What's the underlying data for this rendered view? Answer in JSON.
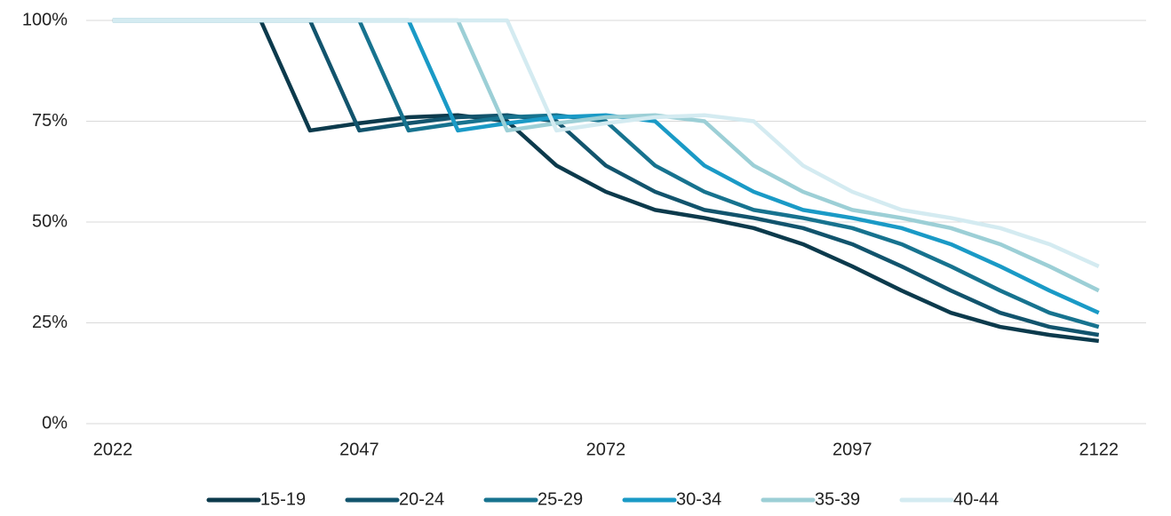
{
  "chart_data": {
    "type": "line",
    "x": [
      2022,
      2027,
      2032,
      2037,
      2042,
      2047,
      2052,
      2057,
      2062,
      2067,
      2072,
      2077,
      2082,
      2087,
      2092,
      2097,
      2102,
      2107,
      2112,
      2117,
      2122
    ],
    "xlim": [
      2019.3,
      2126.8
    ],
    "xticks": [
      2022,
      2047,
      2072,
      2097,
      2122
    ],
    "ylim": [
      0,
      100
    ],
    "yticks": [
      {
        "value": 0,
        "label": "0%"
      },
      {
        "value": 25,
        "label": "25%"
      },
      {
        "value": 50,
        "label": "50%"
      },
      {
        "value": 75,
        "label": "75%"
      },
      {
        "value": 100,
        "label": "100%"
      }
    ],
    "grid": true,
    "legend": "bottom",
    "series": [
      {
        "name": "15-19",
        "color": "#0c3a4c",
        "values": [
          100,
          100,
          100,
          100,
          72.7,
          74.5,
          76,
          76.5,
          75,
          64,
          57.5,
          53,
          51,
          48.5,
          44.5,
          39,
          33,
          27.5,
          24,
          22,
          20.5
        ]
      },
      {
        "name": "20-24",
        "color": "#12546d",
        "values": [
          100,
          100,
          100,
          100,
          100,
          72.7,
          74.5,
          76,
          76.5,
          75,
          64,
          57.5,
          53,
          51,
          48.5,
          44.5,
          39,
          33,
          27.5,
          24,
          22
        ]
      },
      {
        "name": "25-29",
        "color": "#17738f",
        "values": [
          100,
          100,
          100,
          100,
          100,
          100,
          72.7,
          74.5,
          76,
          76.5,
          75,
          64,
          57.5,
          53,
          51,
          48.5,
          44.5,
          39,
          33,
          27.5,
          24
        ]
      },
      {
        "name": "30-34",
        "color": "#1a9ac6",
        "values": [
          100,
          100,
          100,
          100,
          100,
          100,
          100,
          72.7,
          74.5,
          76,
          76.5,
          75,
          64,
          57.5,
          53,
          51,
          48.5,
          44.5,
          39,
          33,
          27.5
        ]
      },
      {
        "name": "35-39",
        "color": "#9ccfd6",
        "values": [
          100,
          100,
          100,
          100,
          100,
          100,
          100,
          100,
          72.7,
          74.5,
          76,
          76.5,
          75,
          64,
          57.5,
          53,
          51,
          48.5,
          44.5,
          39,
          33
        ]
      },
      {
        "name": "40-44",
        "color": "#d4ebf1",
        "values": [
          100,
          100,
          100,
          100,
          100,
          100,
          100,
          100,
          100,
          72.7,
          74.5,
          76,
          76.5,
          75,
          64,
          57.5,
          53,
          51,
          48.5,
          44.5,
          39
        ]
      }
    ]
  }
}
